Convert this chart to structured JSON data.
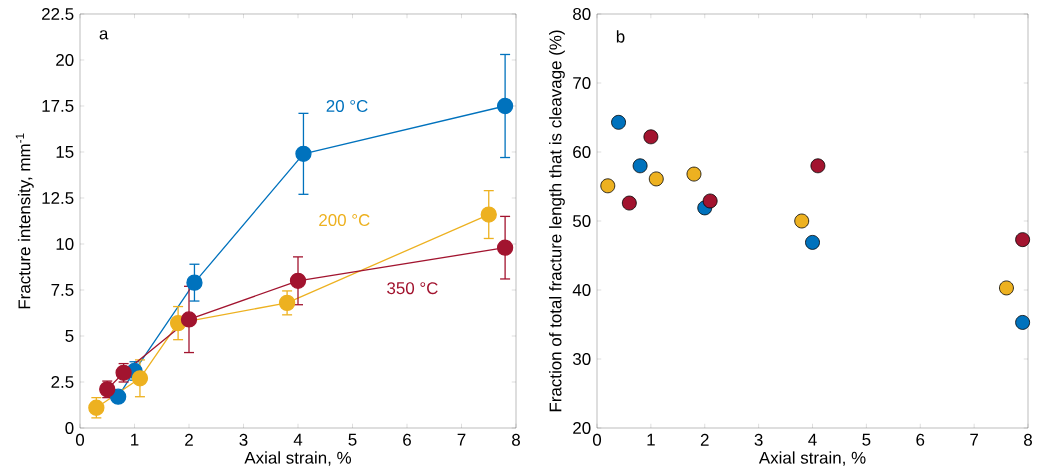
{
  "chart_data": [
    {
      "type": "line",
      "xlabel": "Axial strain, %",
      "ylabel": "Fracture intensity, mm$^{-1}$",
      "annotations": [
        "a"
      ],
      "xlim": [
        0,
        8
      ],
      "ylim": [
        0,
        22.5
      ],
      "xticks": [
        0,
        1,
        2,
        3,
        4,
        5,
        6,
        7,
        8
      ],
      "yticks": [
        0,
        2.5,
        5,
        7.5,
        10,
        12.5,
        15,
        17.5,
        20,
        22.5
      ],
      "grid": false,
      "legend": false,
      "marker": "circle",
      "line_style": "solid",
      "series": [
        {
          "name": "20 °C",
          "color": "#0072bd",
          "x": [
            0.7,
            1.0,
            2.1,
            4.1,
            7.8
          ],
          "values": [
            1.7,
            3.1,
            7.9,
            14.9,
            17.5
          ],
          "errors": [
            0.3,
            0.5,
            1.0,
            2.2,
            2.8
          ]
        },
        {
          "name": "200 °C",
          "color": "#edb120",
          "x": [
            0.3,
            1.1,
            1.8,
            3.8,
            7.5
          ],
          "values": [
            1.1,
            2.7,
            5.7,
            6.8,
            11.6
          ],
          "errors": [
            0.55,
            1.0,
            0.9,
            0.65,
            1.3
          ]
        },
        {
          "name": "350 °C",
          "color": "#a2142f",
          "x": [
            0.5,
            0.8,
            2.0,
            4.0,
            7.8
          ],
          "values": [
            2.1,
            3.0,
            5.9,
            8.0,
            9.8
          ],
          "errors": [
            0.45,
            0.5,
            1.8,
            1.3,
            1.7
          ]
        }
      ]
    },
    {
      "type": "scatter",
      "xlabel": "Axial strain, %",
      "ylabel": "Fraction of total fracture length that is cleavage (%)",
      "annotations": [
        "b"
      ],
      "xlim": [
        0,
        8
      ],
      "ylim": [
        20,
        80
      ],
      "xticks": [
        0,
        1,
        2,
        3,
        4,
        5,
        6,
        7,
        8
      ],
      "yticks": [
        20,
        30,
        40,
        50,
        60,
        70,
        80
      ],
      "grid": false,
      "legend": false,
      "marker": "circle",
      "series": [
        {
          "color": "#0072bd",
          "x": [
            0.4,
            0.8,
            2.0,
            4.0,
            7.9
          ],
          "values": [
            64.3,
            58.0,
            51.9,
            46.9,
            35.3
          ]
        },
        {
          "color": "#edb120",
          "x": [
            0.2,
            1.1,
            1.8,
            3.8,
            7.6
          ],
          "values": [
            55.1,
            56.1,
            56.8,
            50.0,
            40.3
          ]
        },
        {
          "color": "#a2142f",
          "x": [
            0.6,
            1.0,
            2.1,
            4.1,
            7.9
          ],
          "values": [
            52.6,
            62.2,
            52.9,
            58.0,
            47.3
          ]
        }
      ]
    }
  ]
}
